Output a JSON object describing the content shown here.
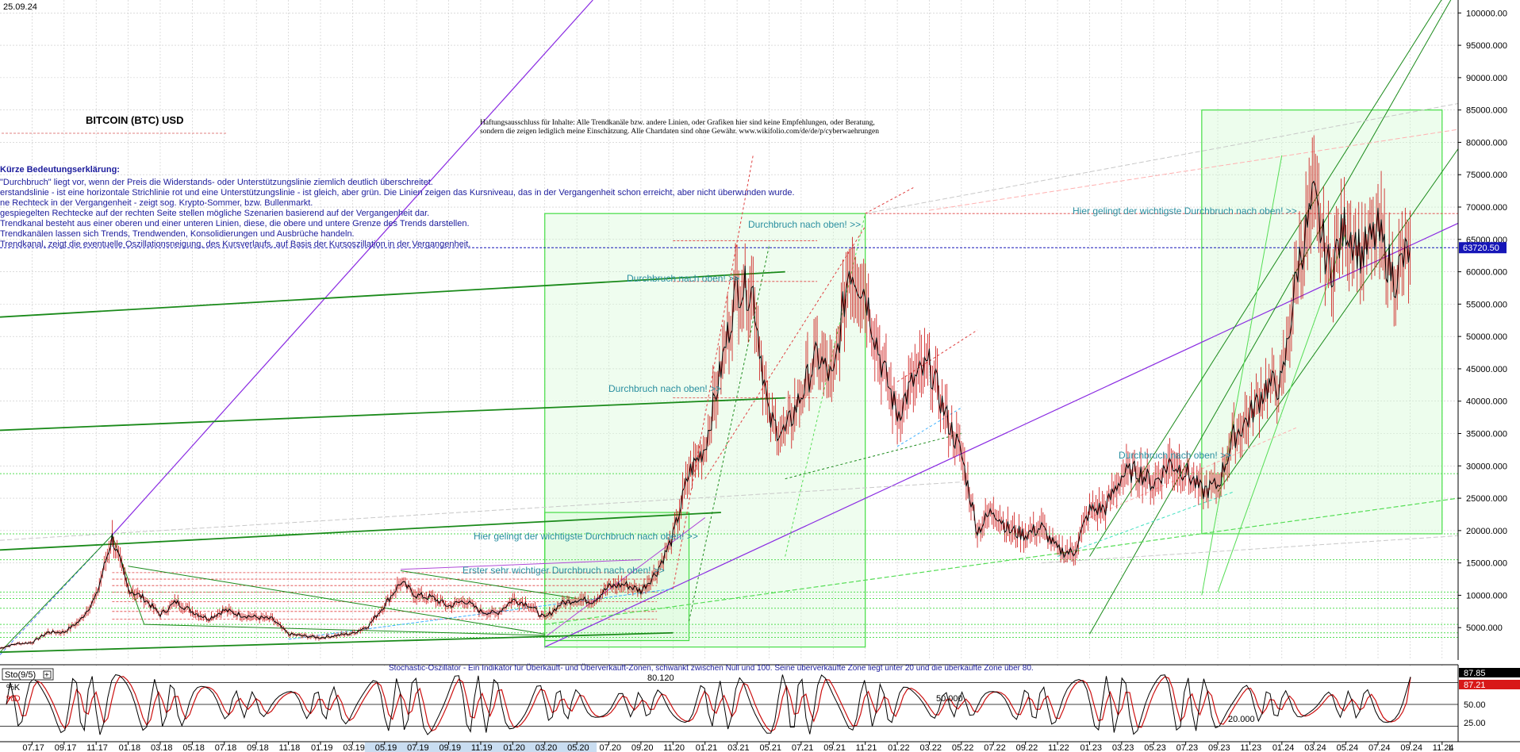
{
  "header": {
    "date": "25.09.24"
  },
  "title": "BITCOIN (BTC) USD",
  "disclaimer": {
    "line1": "Haftungsausschluss für Inhalte: Alle Trendkanäle bzw. andere Linien, oder Grafiken hier sind keine Empfehlungen, oder Beratung,",
    "line2": "sondern die zeigen lediglich meine  Einschätzung. Alle Chartdaten sind ohne Gewähr.  www.wikifolio.com/de/de/p/cyberwaehrungen"
  },
  "legend": {
    "heading": "Kürze Bedeutungserklärung:",
    "lines": [
      "\"Durchbruch\" liegt vor, wenn der Preis die Widerstands- oder Unterstützungslinie ziemlich deutlich überschreitet.",
      "erstandslinie - ist eine horizontale Strichlinie rot und eine Unterstützungslinie - ist gleich, aber grün. Die Linien zeigen das Kursniveau, das in der Vergangenheit schon erreicht, aber nicht überwunden wurde.",
      "ne Rechteck in der Vergangenheit - zeigt sog. Krypto-Sommer, bzw. Bullenmarkt.",
      "gespiegelten Rechtecke auf der rechten Seite stellen mögliche Szenarien basierend auf der Vergangenheit dar.",
      "Trendkanal besteht aus einer oberen und einer unteren Linien, diese, die obere und untere Grenze des Trends darstellen.",
      "Trendkanälen lassen sich Trends, Trendwenden, Konsolidierungen und Ausbrüche handeln.",
      "Trendkanal, zeigt die eventuelle Oszillationsneigung, des Kursverlaufs, auf Basis der Kursoszillation in der Vergangenheit."
    ]
  },
  "annotations": [
    {
      "text": "Durchbruch nach oben! >>",
      "date": "2021-02",
      "price": 66500
    },
    {
      "text": "Durchbruch nach oben! >>",
      "date": "2020-10",
      "price": 59000
    },
    {
      "text": "Durchbruch nach oben! >>",
      "date": "2020-09",
      "price": 43500
    },
    {
      "text": "Hier gelingt der wichtigste Durchbruch nach oben! >>",
      "date": "2019-04",
      "price": 20000
    },
    {
      "text": "Erster sehr wichtiger Durchbruch nach oben! >>",
      "date": "2019-11",
      "price": 14800
    },
    {
      "text": "Durchbruch nach oben! >>",
      "date": "2023-01",
      "price": 32500
    },
    {
      "text": "Hier gelingt der wichtigste Durchbruch nach oben! >>",
      "date": "2023-08",
      "price": 70000
    }
  ],
  "oscillator": {
    "label": "Sto(9/5)",
    "k_label": "%K",
    "d_label": "%D",
    "k_value": "87.85",
    "d_value": "87.21",
    "note": "Stochastic-Oszillator - Ein Indikator für Überkauft- und Überverkauft-Zonen, schwankt zwischen Null und 100. Seine überverkaufte Zone liegt unter 20 und die überkaufte Zone über 80.",
    "inline_labels": [
      "80.120",
      "50.000",
      "20.000"
    ],
    "ticks": [
      {
        "value": "50.00",
        "level": 50
      },
      {
        "value": "25.00",
        "level": 25
      }
    ]
  },
  "price_badge": "63720.50",
  "axis_tail": "L",
  "chart_data": {
    "type": "line",
    "title": "BITCOIN (BTC) USD",
    "xlabel": "",
    "ylabel": "",
    "ylim": [
      0,
      102000
    ],
    "xlim": [
      "2017-05",
      "2024-12"
    ],
    "y_ticks": [
      "5000.000",
      "10000.000",
      "15000.000",
      "20000.000",
      "25000.000",
      "30000.000",
      "35000.000",
      "40000.000",
      "45000.000",
      "50000.000",
      "55000.000",
      "60000.000",
      "65000.000",
      "70000.000",
      "75000.000",
      "80000.000",
      "85000.000",
      "90000.000",
      "95000.000",
      "100000.00"
    ],
    "x_ticks": [
      "07.17",
      "09.17",
      "11.17",
      "01.18",
      "03.18",
      "05.18",
      "07.18",
      "09.18",
      "11.18",
      "01.19",
      "03.19",
      "05.19",
      "07.19",
      "09.19",
      "11.19",
      "01.20",
      "03.20",
      "05.20",
      "07.20",
      "09.20",
      "11.20",
      "01.21",
      "03.21",
      "05.21",
      "07.21",
      "09.21",
      "11.21",
      "01.22",
      "03.22",
      "05.22",
      "07.22",
      "09.22",
      "11.22",
      "01.23",
      "03.23",
      "05.23",
      "07.23",
      "09.23",
      "11.23",
      "01.24",
      "03.24",
      "05.24",
      "07.24",
      "09.24",
      "11.24"
    ],
    "x_tick_months": [
      "2017-07",
      "2017-09",
      "2017-11",
      "2018-01",
      "2018-03",
      "2018-05",
      "2018-07",
      "2018-09",
      "2018-11",
      "2019-01",
      "2019-03",
      "2019-05",
      "2019-07",
      "2019-09",
      "2019-11",
      "2020-01",
      "2020-03",
      "2020-05",
      "2020-07",
      "2020-09",
      "2020-11",
      "2021-01",
      "2021-03",
      "2021-05",
      "2021-07",
      "2021-09",
      "2021-11",
      "2022-01",
      "2022-03",
      "2022-05",
      "2022-07",
      "2022-09",
      "2022-11",
      "2023-01",
      "2023-03",
      "2023-05",
      "2023-07",
      "2023-09",
      "2023-11",
      "2024-01",
      "2024-03",
      "2024-05",
      "2024-07",
      "2024-09",
      "2024-11"
    ],
    "highlight_x_ticks": [
      "2019-05",
      "2019-07",
      "2019-09",
      "2019-11",
      "2020-01",
      "2020-03",
      "2020-05"
    ],
    "last_price": 63720.5,
    "series": [
      {
        "dates": [
          "2017-05",
          "2017-06",
          "2017-07",
          "2017-08",
          "2017-09",
          "2017-10",
          "2017-11",
          "2017-12",
          "2018-01",
          "2018-02",
          "2018-03",
          "2018-04",
          "2018-05",
          "2018-06",
          "2018-07",
          "2018-08",
          "2018-09",
          "2018-10",
          "2018-11",
          "2018-12",
          "2019-01",
          "2019-02",
          "2019-03",
          "2019-04",
          "2019-05",
          "2019-06",
          "2019-07",
          "2019-08",
          "2019-09",
          "2019-10",
          "2019-11",
          "2019-12",
          "2020-01",
          "2020-02",
          "2020-03",
          "2020-04",
          "2020-05",
          "2020-06",
          "2020-07",
          "2020-08",
          "2020-09",
          "2020-10",
          "2020-11",
          "2020-12",
          "2021-01",
          "2021-02",
          "2021-03",
          "2021-04",
          "2021-05",
          "2021-06",
          "2021-07",
          "2021-08",
          "2021-09",
          "2021-10",
          "2021-11",
          "2021-12",
          "2022-01",
          "2022-02",
          "2022-03",
          "2022-04",
          "2022-05",
          "2022-06",
          "2022-07",
          "2022-08",
          "2022-09",
          "2022-10",
          "2022-11",
          "2022-12",
          "2023-01",
          "2023-02",
          "2023-03",
          "2023-04",
          "2023-05",
          "2023-06",
          "2023-07",
          "2023-08",
          "2023-09",
          "2023-10",
          "2023-11",
          "2023-12",
          "2024-01",
          "2024-02",
          "2024-03",
          "2024-04",
          "2024-05",
          "2024-06",
          "2024-07",
          "2024-08",
          "2024-09"
        ],
        "values": [
          1800,
          2500,
          2700,
          4300,
          4300,
          6100,
          9800,
          19000,
          11000,
          9500,
          7000,
          9000,
          7500,
          6400,
          7700,
          7000,
          6600,
          6300,
          4000,
          3700,
          3450,
          3800,
          4100,
          5300,
          8500,
          12000,
          10000,
          9600,
          8300,
          9200,
          7500,
          7200,
          9300,
          8600,
          6400,
          8700,
          9400,
          9100,
          11300,
          11700,
          10700,
          13700,
          19000,
          28900,
          33000,
          45000,
          58000,
          57000,
          37000,
          35000,
          41000,
          47000,
          43000,
          61000,
          57000,
          46000,
          38000,
          43000,
          45500,
          38000,
          31700,
          20000,
          23300,
          20000,
          19400,
          20500,
          17000,
          16500,
          23100,
          23500,
          28500,
          29300,
          27200,
          30500,
          29200,
          26000,
          27000,
          34500,
          37700,
          42300,
          42500,
          61000,
          71000,
          60000,
          67500,
          62700,
          66000,
          59000,
          63720
        ]
      }
    ]
  }
}
